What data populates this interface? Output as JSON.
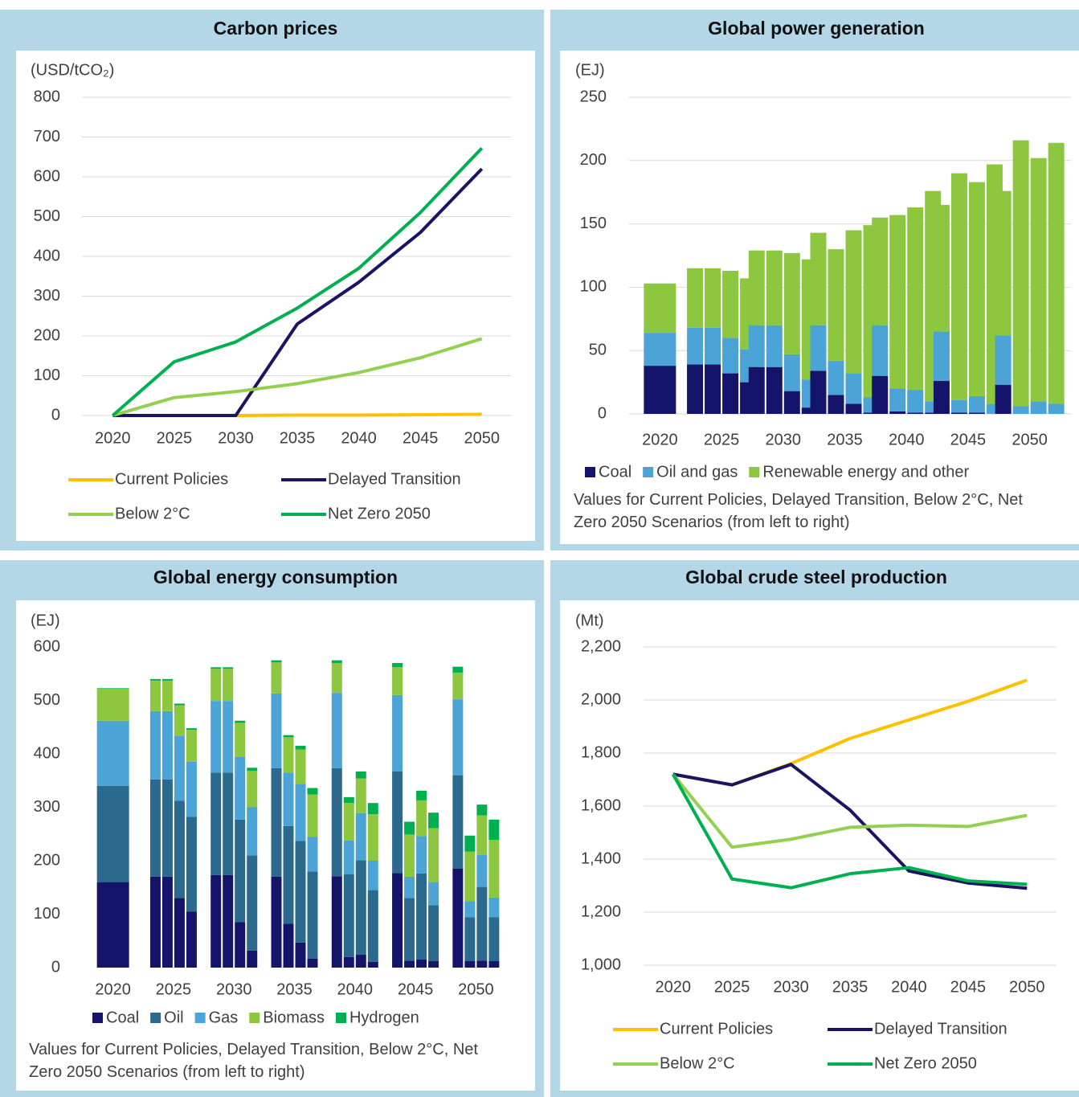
{
  "chart_data": [
    {
      "type": "line",
      "title": "Carbon prices",
      "y_label": "(USD/tCO₂)",
      "categories": [
        "2020",
        "2025",
        "2030",
        "2035",
        "2040",
        "2045",
        "2050"
      ],
      "ylim": [
        0,
        800
      ],
      "yticks": [
        0,
        100,
        200,
        300,
        400,
        500,
        600,
        700,
        800
      ],
      "grid": true,
      "series": [
        {
          "name": "Current Policies",
          "color": "#ffc000",
          "values": [
            0,
            0,
            0,
            1,
            1,
            2,
            3
          ]
        },
        {
          "name": "Delayed Transition",
          "color": "#1b1464",
          "values": [
            0,
            0,
            0,
            230,
            335,
            460,
            620
          ]
        },
        {
          "name": "Below 2°C",
          "color": "#92d050",
          "values": [
            0,
            45,
            60,
            80,
            108,
            145,
            193
          ]
        },
        {
          "name": "Net Zero 2050",
          "color": "#00b050",
          "values": [
            0,
            135,
            185,
            270,
            370,
            510,
            672
          ]
        }
      ]
    },
    {
      "type": "stacked_bar",
      "title": "Global power generation",
      "y_label": "(EJ)",
      "categories": [
        "2020",
        "2025",
        null,
        null,
        null,
        "2030",
        null,
        null,
        null,
        "2035",
        null,
        null,
        null,
        "2040",
        null,
        null,
        null,
        "2045",
        null,
        null,
        null,
        "2050",
        null,
        null,
        null
      ],
      "ylim": [
        0,
        250
      ],
      "yticks": [
        0,
        50,
        100,
        150,
        200,
        250
      ],
      "grid": true,
      "series": [
        {
          "name": "Coal",
          "color": "#14146b",
          "values": [
            38,
            39,
            39,
            32,
            25,
            37,
            37,
            18,
            5,
            34,
            15,
            8,
            1,
            30,
            2,
            1,
            1,
            26,
            1,
            1,
            0,
            23,
            0,
            0,
            0
          ]
        },
        {
          "name": "Oil and gas",
          "color": "#4ba3d6",
          "values": [
            26,
            29,
            29,
            28,
            26,
            33,
            33,
            29,
            22,
            36,
            27,
            24,
            12,
            40,
            18,
            18,
            9,
            39,
            10,
            13,
            8,
            39,
            6,
            10,
            8
          ]
        },
        {
          "name": "Renewable energy and other",
          "color": "#8dc63f",
          "values": [
            39,
            47,
            47,
            53,
            56,
            59,
            59,
            80,
            95,
            73,
            88,
            113,
            136,
            85,
            137,
            144,
            166,
            100,
            179,
            169,
            189,
            114,
            210,
            192,
            206
          ]
        }
      ],
      "note": "Values for Current Policies, Delayed Transition, Below 2°C, Net Zero 2050 Scenarios (from left to right)"
    },
    {
      "type": "stacked_bar",
      "title": "Global energy consumption",
      "y_label": "(EJ)",
      "categories": [
        "2020",
        "2025",
        null,
        null,
        null,
        "2030",
        null,
        null,
        null,
        "2035",
        null,
        null,
        null,
        "2040",
        null,
        null,
        null,
        "2045",
        null,
        null,
        null,
        "2050",
        null,
        null,
        null
      ],
      "ylim": [
        0,
        600
      ],
      "yticks": [
        0,
        100,
        200,
        300,
        400,
        500,
        600
      ],
      "grid": false,
      "series": [
        {
          "name": "Coal",
          "color": "#14146b",
          "values": [
            160,
            170,
            170,
            130,
            105,
            173,
            173,
            85,
            32,
            170,
            82,
            47,
            17,
            171,
            20,
            24,
            11,
            177,
            13,
            15,
            12,
            185,
            12,
            13,
            12
          ]
        },
        {
          "name": "Oil",
          "color": "#2b6a8c",
          "values": [
            180,
            182,
            182,
            182,
            177,
            192,
            192,
            192,
            178,
            203,
            183,
            190,
            163,
            202,
            155,
            177,
            134,
            190,
            117,
            161,
            105,
            175,
            82,
            138,
            82
          ]
        },
        {
          "name": "Gas",
          "color": "#4ba3d6",
          "values": [
            122,
            128,
            128,
            121,
            103,
            134,
            134,
            117,
            90,
            140,
            100,
            107,
            65,
            141,
            63,
            88,
            55,
            143,
            40,
            70,
            43,
            142,
            30,
            60,
            37
          ]
        },
        {
          "name": "Biomass",
          "color": "#8dc63f",
          "values": [
            60,
            57,
            57,
            58,
            60,
            60,
            60,
            64,
            68,
            58,
            66,
            64,
            79,
            56,
            70,
            65,
            87,
            52,
            79,
            67,
            101,
            50,
            93,
            74,
            108
          ]
        },
        {
          "name": "Hydrogen",
          "color": "#00b050",
          "values": [
            1,
            3,
            3,
            3,
            3,
            3,
            3,
            4,
            6,
            4,
            4,
            7,
            12,
            5,
            11,
            13,
            21,
            8,
            24,
            18,
            29,
            11,
            30,
            20,
            38
          ]
        }
      ],
      "note": "Values for Current Policies, Delayed Transition, Below 2°C, Net Zero 2050 Scenarios (from left to right)"
    },
    {
      "type": "line",
      "title": "Global crude steel production",
      "y_label": "(Mt)",
      "categories": [
        "2020",
        "2025",
        "2030",
        "2035",
        "2040",
        "2045",
        "2050"
      ],
      "ylim": [
        1000,
        2200
      ],
      "yticks": [
        {
          "value": 1000,
          "label": "1,000"
        },
        {
          "value": 1200,
          "label": "1,200"
        },
        {
          "value": 1400,
          "label": "1,400"
        },
        {
          "value": 1600,
          "label": "1,600"
        },
        {
          "value": 1800,
          "label": "1,800"
        },
        {
          "value": 2000,
          "label": "2,000"
        },
        {
          "value": 2200,
          "label": "2,200"
        }
      ],
      "grid": true,
      "series": [
        {
          "name": "Current Policies",
          "color": "#ffc000",
          "values": [
            1720,
            1680,
            1760,
            1855,
            1925,
            1995,
            2075
          ]
        },
        {
          "name": "Delayed Transition",
          "color": "#1b1464",
          "values": [
            1720,
            1680,
            1757,
            1585,
            1355,
            1310,
            1290
          ]
        },
        {
          "name": "Below 2°C",
          "color": "#92d050",
          "values": [
            1720,
            1445,
            1475,
            1520,
            1528,
            1523,
            1565
          ]
        },
        {
          "name": "Net Zero 2050",
          "color": "#00b050",
          "values": [
            1720,
            1325,
            1292,
            1345,
            1368,
            1318,
            1305
          ]
        }
      ]
    }
  ]
}
